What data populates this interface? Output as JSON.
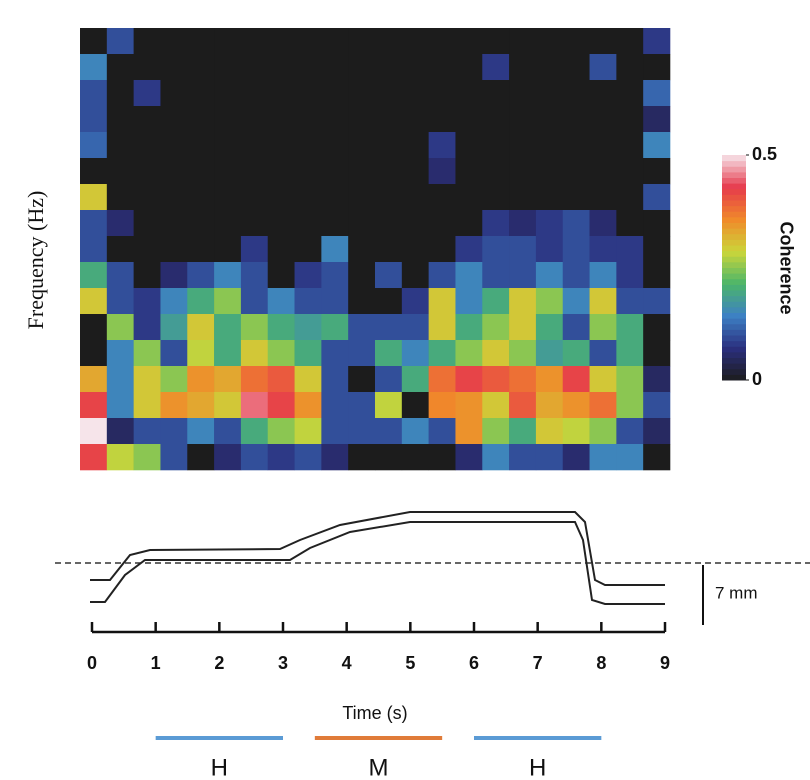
{
  "chart_data": [
    {
      "type": "heatmap",
      "ylabel": "Frequency (Hz)",
      "colorbar_label": "Coherence",
      "xlim": [
        -0.2,
        9.05
      ],
      "zlim": [
        0,
        0.5
      ],
      "zticks": [
        0,
        0.5
      ],
      "colorscale": [
        "#1c1c1c",
        "#2b2f7e",
        "#3d80c4",
        "#4bb56a",
        "#cbd63a",
        "#f08a2a",
        "#e63a4c",
        "#f6e4ea"
      ],
      "z": [
        [
          0,
          0.1,
          0,
          0,
          0,
          0,
          0,
          0,
          0,
          0,
          0,
          0,
          0,
          0,
          0,
          0,
          0,
          0,
          0,
          0,
          0,
          0.08
        ],
        [
          0.15,
          0,
          0,
          0,
          0,
          0,
          0,
          0,
          0,
          0,
          0,
          0,
          0,
          0,
          0,
          0.08,
          0,
          0,
          0,
          0.1,
          0,
          0
        ],
        [
          0.1,
          0,
          0.08,
          0,
          0,
          0,
          0,
          0,
          0,
          0,
          0,
          0,
          0,
          0,
          0,
          0,
          0,
          0,
          0,
          0,
          0,
          0.12
        ],
        [
          0.1,
          0,
          0,
          0,
          0,
          0,
          0,
          0,
          0,
          0,
          0,
          0,
          0,
          0,
          0,
          0,
          0,
          0,
          0,
          0,
          0,
          0.05
        ],
        [
          0.12,
          0,
          0,
          0,
          0,
          0,
          0,
          0,
          0,
          0,
          0,
          0,
          0,
          0.08,
          0,
          0,
          0,
          0,
          0,
          0,
          0,
          0.15
        ],
        [
          0,
          0,
          0,
          0,
          0,
          0,
          0,
          0,
          0,
          0,
          0,
          0,
          0,
          0.06,
          0,
          0,
          0,
          0,
          0,
          0,
          0,
          0
        ],
        [
          0.3,
          0,
          0,
          0,
          0,
          0,
          0,
          0,
          0,
          0,
          0,
          0,
          0,
          0,
          0,
          0,
          0,
          0,
          0,
          0,
          0,
          0.1
        ],
        [
          0.1,
          0.06,
          0,
          0,
          0,
          0,
          0,
          0,
          0,
          0,
          0,
          0,
          0,
          0,
          0,
          0.08,
          0.06,
          0.08,
          0.1,
          0.06,
          0,
          0
        ],
        [
          0.1,
          0,
          0,
          0,
          0,
          0,
          0.08,
          0,
          0,
          0.15,
          0,
          0,
          0,
          0,
          0.08,
          0.1,
          0.1,
          0.08,
          0.1,
          0.08,
          0.08,
          0
        ],
        [
          0.2,
          0.1,
          0,
          0.06,
          0.1,
          0.15,
          0.1,
          0,
          0.08,
          0.1,
          0,
          0.1,
          0,
          0.1,
          0.15,
          0.1,
          0.1,
          0.15,
          0.1,
          0.15,
          0.08,
          0
        ],
        [
          0.3,
          0.1,
          0.08,
          0.15,
          0.2,
          0.25,
          0.1,
          0.15,
          0.1,
          0.1,
          0,
          0,
          0.08,
          0.3,
          0.15,
          0.2,
          0.3,
          0.25,
          0.15,
          0.3,
          0.1,
          0.1
        ],
        [
          0,
          0.25,
          0.08,
          0.18,
          0.3,
          0.2,
          0.25,
          0.2,
          0.18,
          0.2,
          0.1,
          0.1,
          0.1,
          0.3,
          0.2,
          0.25,
          0.3,
          0.2,
          0.1,
          0.25,
          0.2,
          0
        ],
        [
          0,
          0.15,
          0.25,
          0.1,
          0.28,
          0.2,
          0.3,
          0.25,
          0.2,
          0.1,
          0.1,
          0.2,
          0.15,
          0.2,
          0.25,
          0.3,
          0.25,
          0.18,
          0.2,
          0.1,
          0.2,
          0
        ],
        [
          0.33,
          0.15,
          0.3,
          0.25,
          0.35,
          0.33,
          0.38,
          0.4,
          0.3,
          0.1,
          0,
          0.1,
          0.2,
          0.38,
          0.42,
          0.4,
          0.38,
          0.35,
          0.42,
          0.3,
          0.25,
          0.05
        ],
        [
          0.42,
          0.15,
          0.3,
          0.35,
          0.33,
          0.3,
          0.45,
          0.42,
          0.35,
          0.1,
          0.1,
          0.28,
          0,
          0.36,
          0.35,
          0.3,
          0.4,
          0.33,
          0.35,
          0.38,
          0.25,
          0.1
        ],
        [
          0.5,
          0.05,
          0.1,
          0.1,
          0.15,
          0.1,
          0.2,
          0.25,
          0.28,
          0.1,
          0.1,
          0.1,
          0.15,
          0.1,
          0.35,
          0.25,
          0.2,
          0.3,
          0.28,
          0.25,
          0.1,
          0.05
        ],
        [
          0.42,
          0.28,
          0.25,
          0.1,
          0,
          0.06,
          0.1,
          0.08,
          0.1,
          0.06,
          0,
          0,
          0,
          0,
          0.06,
          0.15,
          0.1,
          0.1,
          0.06,
          0.15,
          0.15,
          0
        ]
      ]
    },
    {
      "type": "time-axis",
      "xlabel": "Time (s)",
      "scale_label": "7 mm",
      "xlim": [
        0,
        9
      ],
      "xticks": [
        0,
        1,
        2,
        3,
        4,
        5,
        6,
        7,
        8,
        9
      ],
      "epochs": [
        {
          "label": "H",
          "start": 1,
          "end": 3,
          "color": "#5b9bd5"
        },
        {
          "label": "M",
          "start": 3.5,
          "end": 5.5,
          "color": "#e07b39"
        },
        {
          "label": "H",
          "start": 6,
          "end": 8,
          "color": "#5b9bd5"
        }
      ]
    }
  ]
}
